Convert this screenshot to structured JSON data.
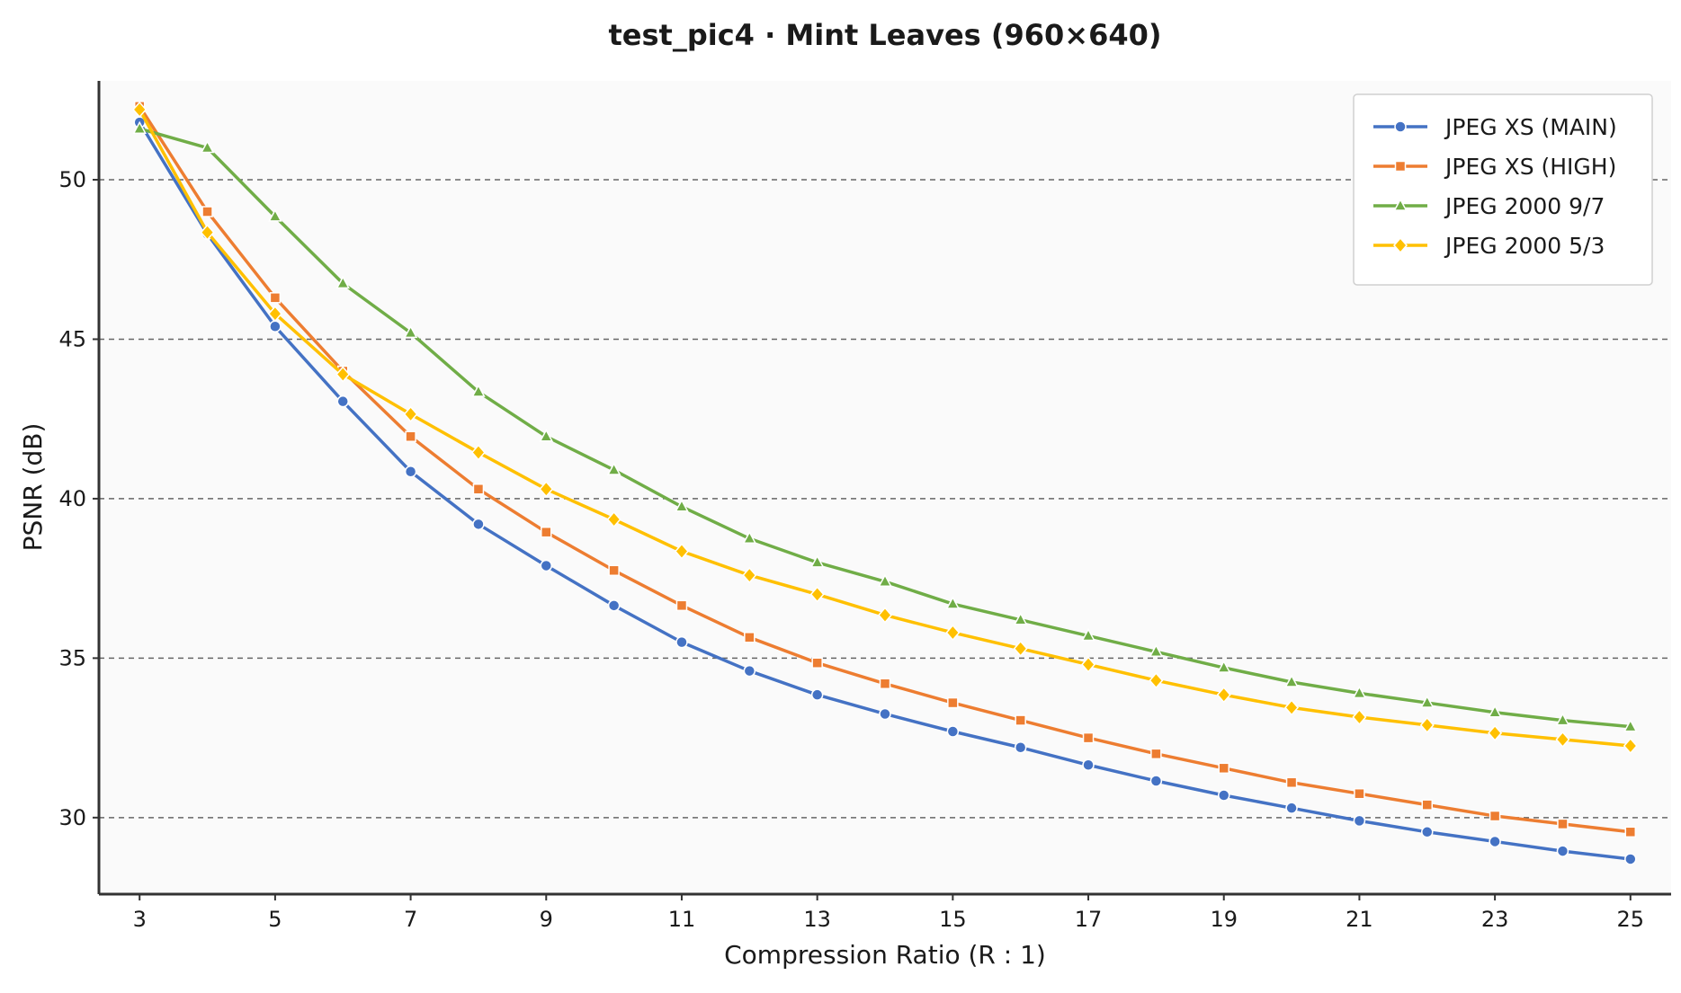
{
  "chart_data": {
    "type": "line",
    "title": "test_pic4 · Mint Leaves (960×640)",
    "xlabel": "Compression Ratio (R : 1)",
    "ylabel": "PSNR (dB)",
    "xlim": [
      2.4,
      25.6
    ],
    "ylim": [
      27.6,
      53.1
    ],
    "xticks": [
      3,
      5,
      7,
      9,
      11,
      13,
      15,
      17,
      19,
      21,
      23,
      25
    ],
    "yticks": [
      30,
      35,
      40,
      45,
      50
    ],
    "grid": "horizontal dashed",
    "legend_position": "top-right",
    "x": [
      3,
      4,
      5,
      6,
      7,
      8,
      9,
      10,
      11,
      12,
      13,
      14,
      15,
      16,
      17,
      18,
      19,
      20,
      21,
      22,
      23,
      24,
      25
    ],
    "series": [
      {
        "name": "JPEG XS (MAIN)",
        "color": "#4472C4",
        "marker": "circle",
        "values": [
          51.8,
          48.3,
          45.4,
          43.05,
          40.85,
          39.2,
          37.9,
          36.65,
          35.5,
          34.6,
          33.85,
          33.25,
          32.7,
          32.2,
          31.65,
          31.15,
          30.7,
          30.3,
          29.9,
          29.55,
          29.25,
          28.95,
          28.7
        ]
      },
      {
        "name": "JPEG XS (HIGH)",
        "color": "#ED7D31",
        "marker": "square",
        "values": [
          52.3,
          49.0,
          46.3,
          44.0,
          41.95,
          40.3,
          38.95,
          37.75,
          36.65,
          35.65,
          34.85,
          34.2,
          33.6,
          33.05,
          32.5,
          32.0,
          31.55,
          31.1,
          30.75,
          30.4,
          30.05,
          29.8,
          29.55
        ]
      },
      {
        "name": "JPEG 2000 9/7",
        "color": "#70AD47",
        "marker": "triangle",
        "values": [
          51.6,
          51.0,
          48.85,
          46.75,
          45.2,
          43.35,
          41.95,
          40.9,
          39.75,
          38.75,
          38.0,
          37.4,
          36.7,
          36.2,
          35.7,
          35.2,
          34.7,
          34.25,
          33.9,
          33.6,
          33.3,
          33.05,
          32.85
        ]
      },
      {
        "name": "JPEG 2000 5/3",
        "color": "#FFC000",
        "marker": "diamond",
        "values": [
          52.2,
          48.35,
          45.8,
          43.9,
          42.65,
          41.45,
          40.3,
          39.35,
          38.35,
          37.6,
          37.0,
          36.35,
          35.8,
          35.3,
          34.8,
          34.3,
          33.85,
          33.45,
          33.15,
          32.9,
          32.65,
          32.45,
          32.25
        ]
      }
    ]
  }
}
